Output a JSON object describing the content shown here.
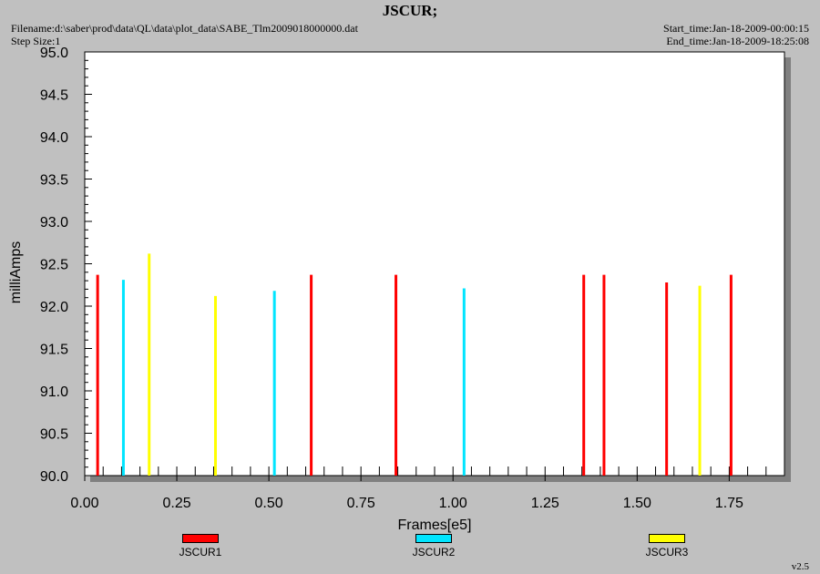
{
  "header": {
    "title": "JSCUR;",
    "filename": "Filename:d:\\saber\\prod\\data\\QL\\data\\plot_data\\SABE_Tlm2009018000000.dat",
    "step_size": "Step Size:1",
    "start_time": "Start_time:Jan-18-2009-00:00:15",
    "end_time": "End_time:Jan-18-2009-18:25:08"
  },
  "version": "v2.5",
  "chart_data": {
    "type": "bar",
    "xlabel": "Frames[e5]",
    "ylabel": "milliAmps",
    "xlim": [
      0.0,
      1.9
    ],
    "ylim": [
      90.0,
      95.0
    ],
    "x_ticks": [
      "0.00",
      "0.25",
      "0.50",
      "0.75",
      "1.00",
      "1.25",
      "1.50",
      "1.75"
    ],
    "y_ticks": [
      "90.0",
      "90.5",
      "91.0",
      "91.5",
      "92.0",
      "92.5",
      "93.0",
      "93.5",
      "94.0",
      "94.5",
      "95.0"
    ],
    "grid": false,
    "legend_position": "bottom",
    "series": [
      {
        "name": "JSCUR1",
        "color": "#ff0000",
        "points": [
          {
            "x": 0.035,
            "y": 92.37
          },
          {
            "x": 0.615,
            "y": 92.37
          },
          {
            "x": 0.845,
            "y": 92.37
          },
          {
            "x": 1.355,
            "y": 92.37
          },
          {
            "x": 1.41,
            "y": 92.37
          },
          {
            "x": 1.58,
            "y": 92.28
          },
          {
            "x": 1.755,
            "y": 92.37
          }
        ]
      },
      {
        "name": "JSCUR2",
        "color": "#00e5ff",
        "points": [
          {
            "x": 0.105,
            "y": 92.31
          },
          {
            "x": 0.515,
            "y": 92.18
          },
          {
            "x": 1.03,
            "y": 92.21
          }
        ]
      },
      {
        "name": "JSCUR3",
        "color": "#ffff00",
        "points": [
          {
            "x": 0.175,
            "y": 92.62
          },
          {
            "x": 0.355,
            "y": 92.12
          },
          {
            "x": 1.67,
            "y": 92.24
          }
        ]
      }
    ]
  }
}
